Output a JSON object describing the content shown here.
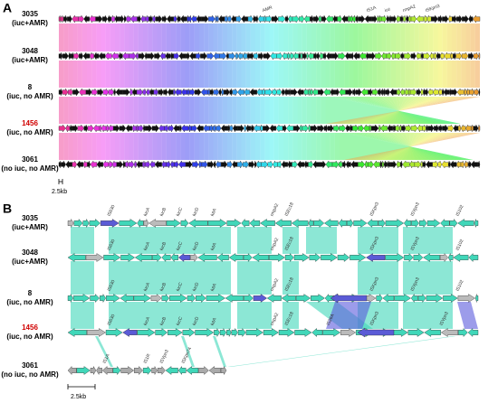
{
  "panel_a": {
    "label": "A",
    "tracks": [
      {
        "id": "3035",
        "desc": "(iuc+AMR)"
      },
      {
        "id": "3048",
        "desc": "(iuc+AMR)"
      },
      {
        "id": "8",
        "desc": "(iuc, no AMR)"
      },
      {
        "id": "1456",
        "desc": "(iuc, no AMR)"
      },
      {
        "id": "3061",
        "desc": "(no iuc, no AMR)"
      }
    ],
    "gene_labels": [
      "AMR",
      "IS1A",
      "iuc",
      "rmpA2",
      "ISKpn3"
    ],
    "scale": "2.5kb"
  },
  "panel_b": {
    "label": "B",
    "tracks": [
      {
        "id": "3035",
        "desc": "(iuc+AMR)",
        "genes": [
          "IS630",
          "iucA",
          "iucB",
          "iucC",
          "iucD",
          "iutA",
          "rmpA2",
          "ISEc18",
          "ISKpn3",
          "ISYpn3",
          "IS102"
        ]
      },
      {
        "id": "3048",
        "desc": "(iuc+AMR)",
        "genes": [
          "IS630",
          "iucA",
          "iucB",
          "iucC",
          "iucD",
          "iutA",
          "rmpA2",
          "ISEc18",
          "ISKpn3",
          "ISYpn3",
          "IS102"
        ]
      },
      {
        "id": "8",
        "desc": "(iuc, no AMR)",
        "genes": [
          "IS630",
          "iucA",
          "iucB",
          "iucC",
          "iucD",
          "iutA",
          "rmpA2",
          "ISEc18",
          "ISKpn3",
          "ISYpn3",
          "IS102"
        ]
      },
      {
        "id": "1456",
        "desc": "(iuc, no AMR)",
        "genes": [
          "IS630",
          "iucA",
          "iucB",
          "iucC",
          "iucD",
          "iutA",
          "rmpA2",
          "ISEc18",
          "IS26A",
          "ISKpn3",
          "ISYpn3"
        ]
      },
      {
        "id": "3061",
        "desc": "(no iuc, no AMR)",
        "genes": [
          "IS1A",
          "IS1R",
          "ISYpn3",
          "ISKpn74"
        ]
      }
    ],
    "scale": "2.5kb"
  }
}
